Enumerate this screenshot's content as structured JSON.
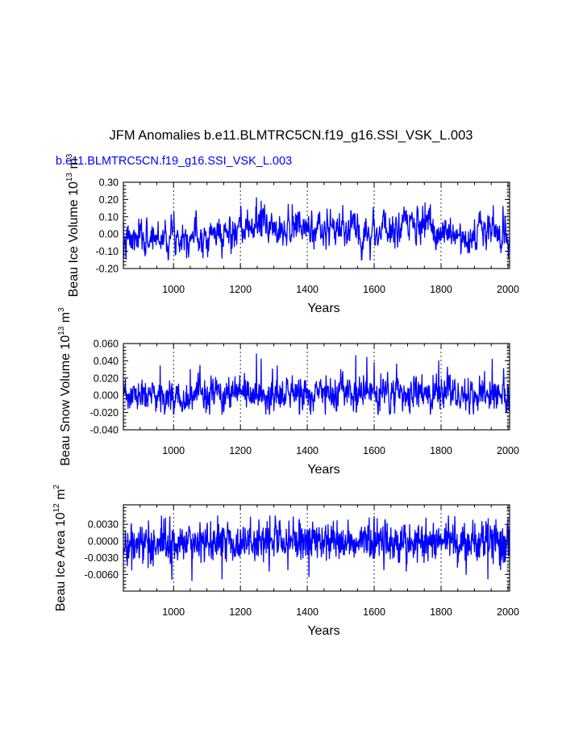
{
  "page": {
    "title": "JFM Anomalies b.e11.BLMTRC5CN.f19_g16.SSI_VSK_L.003",
    "case_label": "b.e11.BLMTRC5CN.f19_g16.SSI_VSK_L.003"
  },
  "colors": {
    "series": "#0000ff",
    "case_label": "#0000ff",
    "axis": "#000000",
    "grid": "#000000"
  },
  "chart_data": [
    {
      "type": "line",
      "name": "ice-volume",
      "title": "",
      "xlabel": "Years",
      "ylabel": "Beau Ice Volume 10",
      "ylabel_sup1": "13",
      "ylabel_mid": " m",
      "ylabel_sup2": "3",
      "xlim": [
        850,
        2005
      ],
      "ylim": [
        -0.2,
        0.3
      ],
      "xticks": [
        1000,
        1200,
        1400,
        1600,
        1800,
        2000
      ],
      "xtick_labels": [
        "1000",
        "1200",
        "1400",
        "1600",
        "1800",
        "2000"
      ],
      "yticks": [
        -0.2,
        -0.1,
        0.0,
        0.1,
        0.2,
        0.3
      ],
      "ytick_labels": [
        "-0.20",
        "-0.10",
        "0.00",
        "0.10",
        "0.20",
        "0.30"
      ],
      "grid": "dashed vertical at major x ticks",
      "series": [
        {
          "name": "Beau Ice Volume",
          "generated": true,
          "x_start": 850,
          "x_end": 2005,
          "seed": 7,
          "sd": 0.052,
          "rho": 0.55,
          "min": -0.15,
          "max": 0.21,
          "segments": [
            {
              "x": 850,
              "mean": -0.05
            },
            {
              "x": 1000,
              "mean": 0.0
            },
            {
              "x": 1200,
              "mean": 0.0
            },
            {
              "x": 1250,
              "mean": 0.06
            },
            {
              "x": 1400,
              "mean": 0.03
            },
            {
              "x": 1600,
              "mean": 0.02
            },
            {
              "x": 1750,
              "mean": 0.04
            },
            {
              "x": 1800,
              "mean": 0.0
            },
            {
              "x": 2005,
              "mean": 0.01
            }
          ],
          "peaks": [
            {
              "x": 851,
              "y": -0.14
            },
            {
              "x": 1248,
              "y": 0.21
            },
            {
              "x": 1262,
              "y": 0.19
            },
            {
              "x": 1355,
              "y": 0.17
            },
            {
              "x": 1588,
              "y": -0.15
            },
            {
              "x": 1752,
              "y": 0.18
            },
            {
              "x": 1745,
              "y": 0.16
            },
            {
              "x": 1985,
              "y": 0.16
            },
            {
              "x": 1145,
              "y": -0.14
            },
            {
              "x": 2001,
              "y": -0.14
            }
          ]
        }
      ]
    },
    {
      "type": "line",
      "name": "snow-volume",
      "title": "",
      "xlabel": "Years",
      "ylabel": "Beau Snow Volume 10",
      "ylabel_sup1": "13",
      "ylabel_mid": " m",
      "ylabel_sup2": "3",
      "xlim": [
        850,
        2005
      ],
      "ylim": [
        -0.04,
        0.06
      ],
      "xticks": [
        1000,
        1200,
        1400,
        1600,
        1800,
        2000
      ],
      "xtick_labels": [
        "1000",
        "1200",
        "1400",
        "1600",
        "1800",
        "2000"
      ],
      "yticks": [
        -0.04,
        -0.02,
        0.0,
        0.02,
        0.04,
        0.06
      ],
      "ytick_labels": [
        "-0.040",
        "-0.020",
        "0.000",
        "0.020",
        "0.040",
        "0.060"
      ],
      "grid": "dashed vertical at major x ticks",
      "series": [
        {
          "name": "Beau Snow Volume",
          "generated": true,
          "x_start": 850,
          "x_end": 2005,
          "seed": 23,
          "sd": 0.0095,
          "rho": 0.35,
          "min": -0.022,
          "max": 0.048,
          "segments": [
            {
              "x": 850,
              "mean": -0.002
            },
            {
              "x": 1200,
              "mean": 0.0
            },
            {
              "x": 1400,
              "mean": 0.001
            },
            {
              "x": 1800,
              "mean": 0.002
            },
            {
              "x": 2005,
              "mean": 0.0
            }
          ],
          "peaks": [
            {
              "x": 1248,
              "y": 0.048
            },
            {
              "x": 1545,
              "y": 0.046
            },
            {
              "x": 1262,
              "y": 0.042
            },
            {
              "x": 1578,
              "y": 0.044
            },
            {
              "x": 1793,
              "y": 0.04
            },
            {
              "x": 1953,
              "y": 0.042
            },
            {
              "x": 1600,
              "y": 0.038
            },
            {
              "x": 1050,
              "y": 0.03
            },
            {
              "x": 960,
              "y": 0.034
            }
          ]
        }
      ]
    },
    {
      "type": "line",
      "name": "ice-area",
      "title": "",
      "xlabel": "Years",
      "ylabel": "Beau Ice Area 10",
      "ylabel_sup1": "12",
      "ylabel_mid": " m",
      "ylabel_sup2": "2",
      "xlim": [
        850,
        2005
      ],
      "ylim": [
        -0.009,
        0.0065
      ],
      "xticks": [
        1000,
        1200,
        1400,
        1600,
        1800,
        2000
      ],
      "xtick_labels": [
        "1000",
        "1200",
        "1400",
        "1600",
        "1800",
        "2000"
      ],
      "yticks": [
        -0.006,
        -0.003,
        0.0,
        0.003
      ],
      "ytick_labels": [
        "-0.0060",
        "-0.0030",
        "0.0000",
        "0.0030"
      ],
      "grid": "dashed vertical at major x ticks",
      "series": [
        {
          "name": "Beau Ice Area",
          "generated": true,
          "x_start": 850,
          "x_end": 2005,
          "seed": 41,
          "sd": 0.0018,
          "rho": 0.2,
          "min": -0.0072,
          "max": 0.0045,
          "segments": [
            {
              "x": 850,
              "mean": -0.0005
            },
            {
              "x": 1200,
              "mean": 0.0
            },
            {
              "x": 1800,
              "mean": 0.0
            },
            {
              "x": 2005,
              "mean": 0.0
            }
          ],
          "peaks": [
            {
              "x": 1055,
              "y": -0.0071
            },
            {
              "x": 1600,
              "y": 0.0044
            },
            {
              "x": 1145,
              "y": -0.0068
            },
            {
              "x": 1405,
              "y": -0.0064
            },
            {
              "x": 1940,
              "y": -0.0068
            },
            {
              "x": 875,
              "y": -0.0052
            },
            {
              "x": 1255,
              "y": 0.0038
            },
            {
              "x": 1345,
              "y": 0.0036
            },
            {
              "x": 1875,
              "y": -0.006
            }
          ]
        }
      ]
    }
  ]
}
